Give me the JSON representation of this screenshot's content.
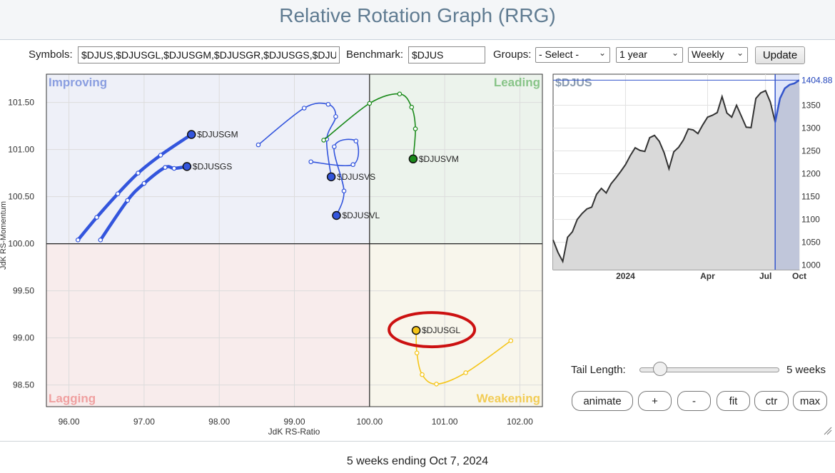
{
  "header": {
    "title": "Relative Rotation Graph (RRG)"
  },
  "toolbar": {
    "symbols_label": "Symbols:",
    "symbols_value": "$DJUS,$DJUSGL,$DJUSGM,$DJUSGR,$DJUSGS,$DJUSVL,$DJUSVM,$DJUSVS",
    "benchmark_label": "Benchmark:",
    "benchmark_value": "$DJUS",
    "groups_label": "Groups:",
    "groups_selected": "- Select -",
    "period_selected": "1 year",
    "frequency_selected": "Weekly",
    "update_label": "Update"
  },
  "quadrants": {
    "improving": "Improving",
    "leading": "Leading",
    "lagging": "Lagging",
    "weakening": "Weakening"
  },
  "colors": {
    "improving_bg": "#eef0f8",
    "leading_bg": "#ecf3ec",
    "lagging_bg": "#f8ecec",
    "weakening_bg": "#f8f6ec",
    "improving_text": "#8a9ee0",
    "leading_text": "#88c488",
    "lagging_text": "#f0a0a0",
    "weakening_text": "#f2cc55",
    "blue_series": "#3355dd",
    "green_series": "#1a8a1a",
    "yellow_series": "#f5c518",
    "highlight_ring": "#cc1111",
    "benchmark_line": "#333333",
    "cursor_line": "#3355cc"
  },
  "chart_data": [
    {
      "type": "scatter",
      "subtype": "relative-rotation-graph",
      "xlabel": "JdK RS-Ratio",
      "ylabel": "JdK RS-Momentum",
      "xlim": [
        95.7,
        102.3
      ],
      "ylim": [
        98.27,
        101.8
      ],
      "xticks": [
        "96.00",
        "97.00",
        "98.00",
        "99.00",
        "100.00",
        "101.00",
        "102.00"
      ],
      "yticks": [
        "98.50",
        "99.00",
        "99.50",
        "100.00",
        "100.50",
        "101.00",
        "101.50"
      ],
      "center": [
        100,
        100
      ],
      "highlighted": "$DJUSGL",
      "series": [
        {
          "name": "$DJUSGM",
          "color": "blue",
          "bold": true,
          "tail": [
            [
              96.12,
              100.04
            ],
            [
              96.37,
              100.28
            ],
            [
              96.65,
              100.53
            ],
            [
              96.92,
              100.75
            ],
            [
              97.22,
              100.94
            ],
            [
              97.63,
              101.16
            ]
          ]
        },
        {
          "name": "$DJUSGS",
          "color": "blue",
          "bold": true,
          "tail": [
            [
              96.42,
              100.04
            ],
            [
              96.78,
              100.46
            ],
            [
              97.0,
              100.64
            ],
            [
              97.28,
              100.81
            ],
            [
              97.4,
              100.8
            ],
            [
              97.57,
              100.82
            ]
          ]
        },
        {
          "name": "$DJUSVS",
          "color": "blue",
          "bold": false,
          "tail": [
            [
              98.52,
              101.05
            ],
            [
              99.13,
              101.44
            ],
            [
              99.45,
              101.48
            ],
            [
              99.55,
              101.35
            ],
            [
              99.43,
              101.11
            ],
            [
              99.49,
              100.71
            ]
          ]
        },
        {
          "name": "$DJUSVL",
          "color": "blue",
          "bold": false,
          "tail": [
            [
              99.22,
              100.87
            ],
            [
              99.78,
              100.84
            ],
            [
              99.82,
              101.09
            ],
            [
              99.53,
              101.03
            ],
            [
              99.66,
              100.56
            ],
            [
              99.56,
              100.3
            ]
          ]
        },
        {
          "name": "$DJUSVM",
          "color": "green",
          "bold": false,
          "tail": [
            [
              99.39,
              101.1
            ],
            [
              100.0,
              101.49
            ],
            [
              100.4,
              101.59
            ],
            [
              100.56,
              101.45
            ],
            [
              100.61,
              101.22
            ],
            [
              100.58,
              100.9
            ]
          ]
        },
        {
          "name": "$DJUSGL",
          "color": "yellow",
          "bold": false,
          "tail": [
            [
              101.88,
              98.97
            ],
            [
              101.28,
              98.63
            ],
            [
              100.89,
              98.51
            ],
            [
              100.7,
              98.61
            ],
            [
              100.63,
              98.84
            ],
            [
              100.62,
              99.08
            ]
          ]
        }
      ]
    },
    {
      "type": "area",
      "name": "$DJUS",
      "last_value": "1404.88",
      "ylim": [
        990,
        1418
      ],
      "yticks": [
        "1000",
        "1050",
        "1100",
        "1150",
        "1200",
        "1250",
        "1300",
        "1350"
      ],
      "xticks": [
        "2024",
        "Apr",
        "Jul",
        "Oct"
      ],
      "values": [
        1055,
        1028,
        1008,
        1061,
        1073,
        1100,
        1113,
        1123,
        1127,
        1155,
        1168,
        1158,
        1178,
        1191,
        1205,
        1220,
        1240,
        1257,
        1251,
        1249,
        1279,
        1284,
        1271,
        1246,
        1211,
        1248,
        1258,
        1274,
        1298,
        1296,
        1288,
        1307,
        1324,
        1328,
        1334,
        1369,
        1333,
        1324,
        1350,
        1326,
        1302,
        1301,
        1365,
        1377,
        1382,
        1357,
        1313,
        1365,
        1387,
        1395,
        1398,
        1405
      ]
    }
  ],
  "controls": {
    "tail_length_label": "Tail Length:",
    "tail_length_value": "5 weeks",
    "tail_length_weeks": 5,
    "animate_label": "animate",
    "plus_label": "+",
    "minus_label": "-",
    "fit_label": "fit",
    "ctr_label": "ctr",
    "max_label": "max"
  },
  "footer": {
    "text": "5 weeks ending Oct 7, 2024"
  }
}
